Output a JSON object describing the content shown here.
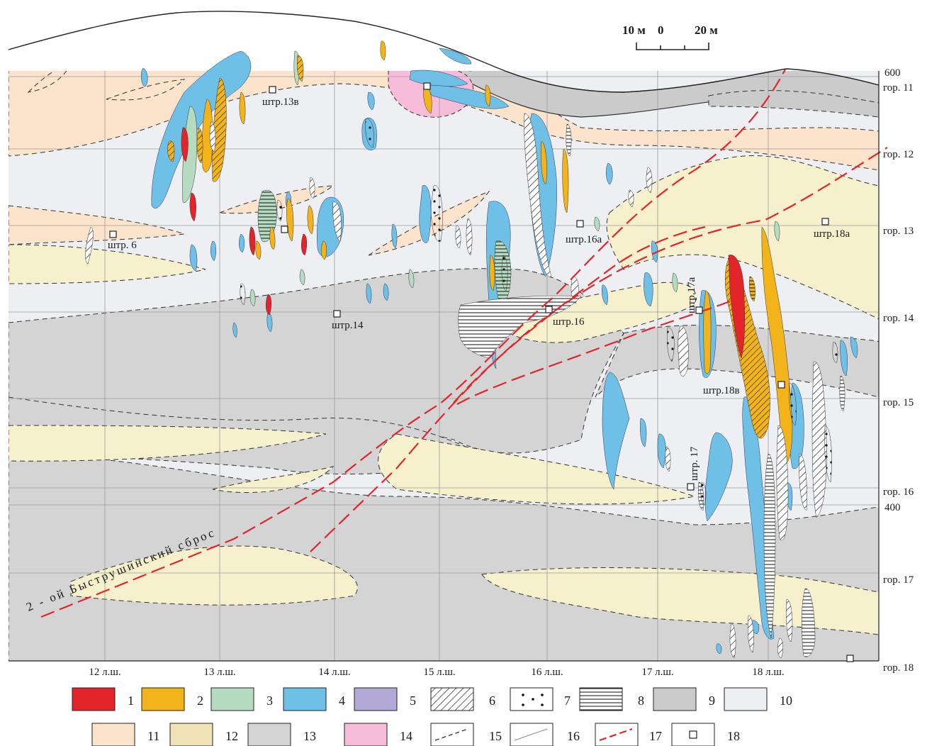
{
  "colors": {
    "c1_red": "#e2252b",
    "c2_orange": "#f2b41a",
    "c3_green": "#b5dcc0",
    "c4_blue": "#6ec0e6",
    "c5_violet": "#b3a9d6",
    "c9_darkgray": "#cbcbcb",
    "c10_light": "#edeff2",
    "c11_peach": "#fbe3cc",
    "c12_beige": "#f6f0cc",
    "c13_gray": "#d4d4d4",
    "c14_pink": "#f6bcd9",
    "fault": "#e0262c"
  },
  "scale_bar": {
    "label_left": "10 м",
    "label_zero": "0",
    "label_right": "20 м"
  },
  "levels": {
    "top_elev": "600",
    "mid_elev": "400",
    "names": [
      "гор. 11",
      "гор. 12",
      "гор. 13",
      "гор. 14",
      "гор. 15",
      "гор. 16",
      "гор. 17",
      "гор. 18"
    ]
  },
  "profiles": [
    "12 л.ш.",
    "13 л.ш.",
    "14 л.ш.",
    "15 л.ш.",
    "16 л.ш.",
    "17 л.ш.",
    "18 л.ш."
  ],
  "adits": {
    "a13v": "штр.13в",
    "a6": "штр. 6",
    "a14": "штр.14",
    "a16": "штр.16",
    "a16a": "штр.16а",
    "a17a": "штр.17а",
    "a17": "штр. 17",
    "a18v": "штр.18в",
    "a18a": "штр.18а"
  },
  "fault_label": "2 - ой   Быструшинский   сброс",
  "legend": [
    {
      "num": "1",
      "pattern": "red"
    },
    {
      "num": "2",
      "pattern": "orange"
    },
    {
      "num": "3",
      "pattern": "green"
    },
    {
      "num": "4",
      "pattern": "blue"
    },
    {
      "num": "5",
      "pattern": "violet"
    },
    {
      "num": "6",
      "pattern": "hatch-diagonal"
    },
    {
      "num": "7",
      "pattern": "dots"
    },
    {
      "num": "8",
      "pattern": "hatch-horizontal"
    },
    {
      "num": "9",
      "pattern": "dark-gray"
    },
    {
      "num": "10",
      "pattern": "light"
    },
    {
      "num": "11",
      "pattern": "peach"
    },
    {
      "num": "12",
      "pattern": "beige"
    },
    {
      "num": "13",
      "pattern": "gray"
    },
    {
      "num": "14",
      "pattern": "pink"
    },
    {
      "num": "15",
      "pattern": "dashed-line"
    },
    {
      "num": "16",
      "pattern": "thin-line"
    },
    {
      "num": "17",
      "pattern": "red-dashed-line"
    },
    {
      "num": "18",
      "pattern": "adit-square"
    }
  ]
}
